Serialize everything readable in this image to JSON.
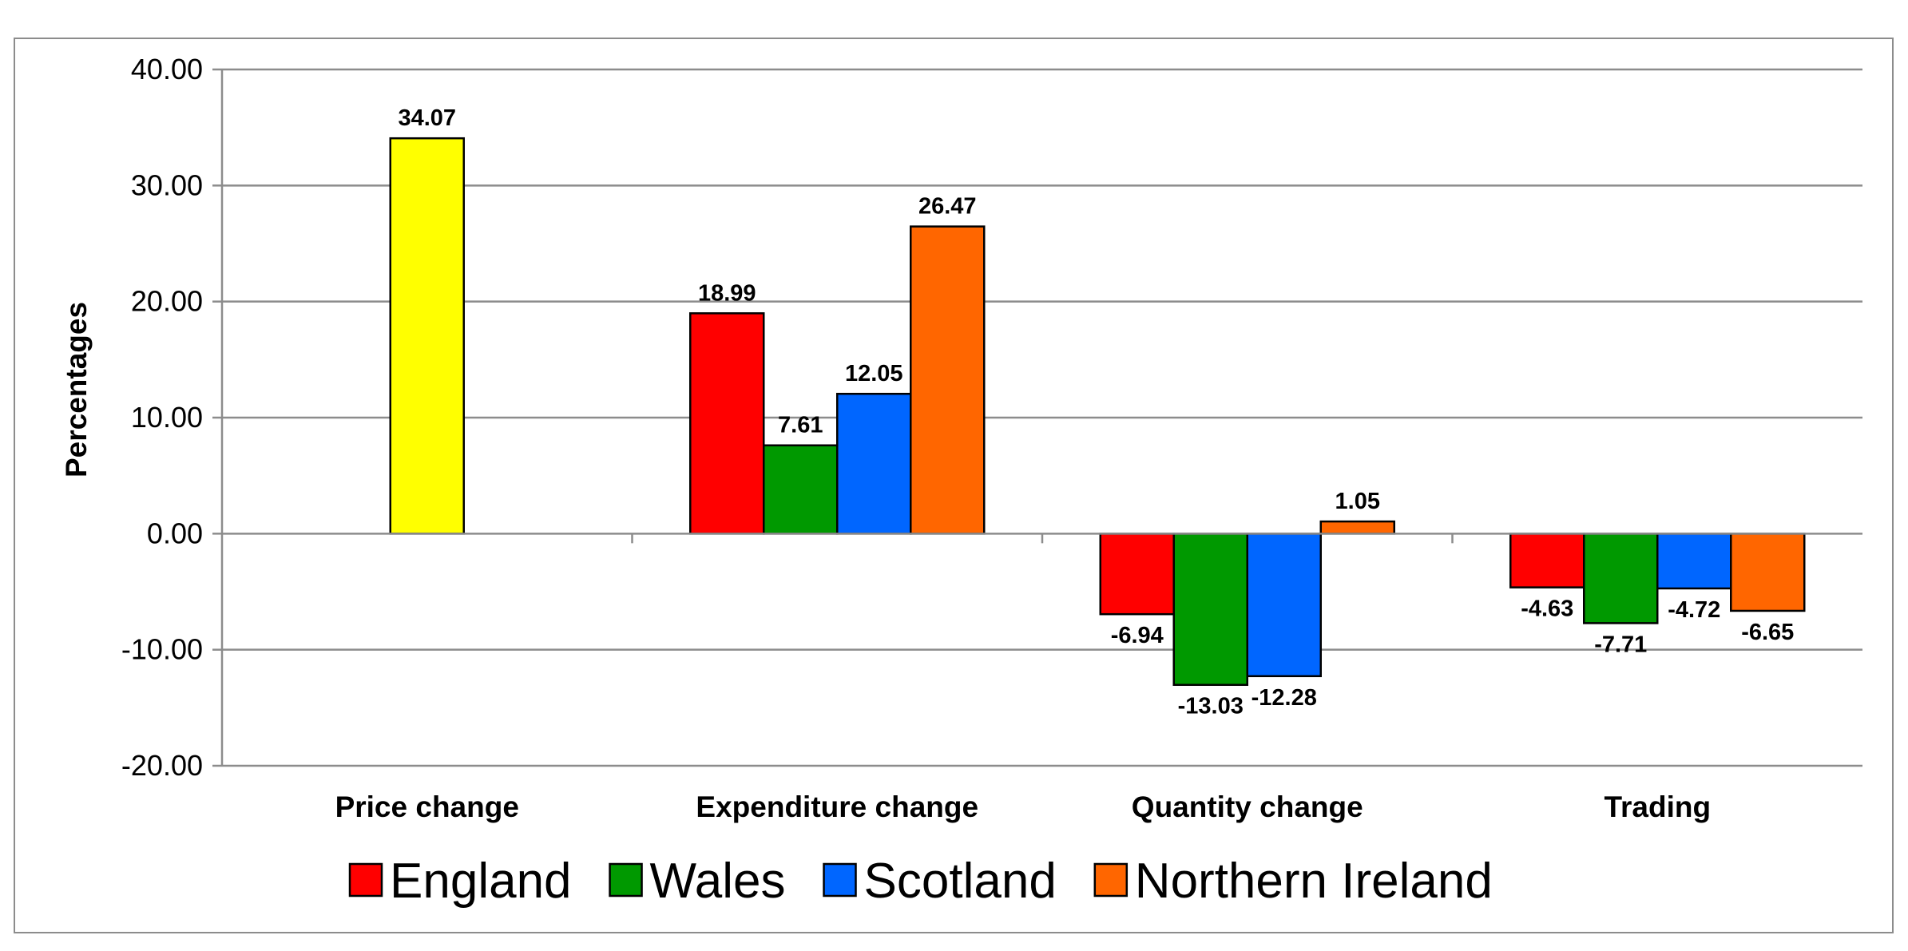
{
  "chart_data": {
    "type": "bar",
    "title": "",
    "xlabel": "",
    "ylabel": "Percentages",
    "ylim": [
      -20,
      40
    ],
    "yticks": [
      40,
      30,
      20,
      10,
      0,
      -10,
      -20
    ],
    "ytick_labels": [
      "40.00",
      "30.00",
      "20.00",
      "10.00",
      "0.00",
      "-10.00",
      "-20.00"
    ],
    "grid": true,
    "legend_position": "bottom",
    "categories": [
      "Price change",
      "Expenditure change",
      "Quantity change",
      "Trading"
    ],
    "price_change": {
      "value": 34.07,
      "label": "34.07",
      "color": "#FFFF00"
    },
    "series": [
      {
        "name": "England",
        "color": "#FF0000",
        "values": [
          null,
          18.99,
          -6.94,
          -4.63
        ],
        "labels": [
          null,
          "18.99",
          "-6.94",
          "-4.63"
        ]
      },
      {
        "name": "Wales",
        "color": "#009900",
        "values": [
          null,
          7.61,
          -13.03,
          -7.71
        ],
        "labels": [
          null,
          "7.61",
          "-13.03",
          "-7.71"
        ]
      },
      {
        "name": "Scotland",
        "color": "#0066FF",
        "values": [
          null,
          12.05,
          -12.28,
          -4.72
        ],
        "labels": [
          null,
          "12.05",
          "-12.28",
          "-4.72"
        ]
      },
      {
        "name": "Northern Ireland",
        "color": "#FF6600",
        "values": [
          null,
          26.47,
          1.05,
          -6.65
        ],
        "labels": [
          null,
          "26.47",
          "1.05",
          "-6.65"
        ]
      }
    ]
  }
}
